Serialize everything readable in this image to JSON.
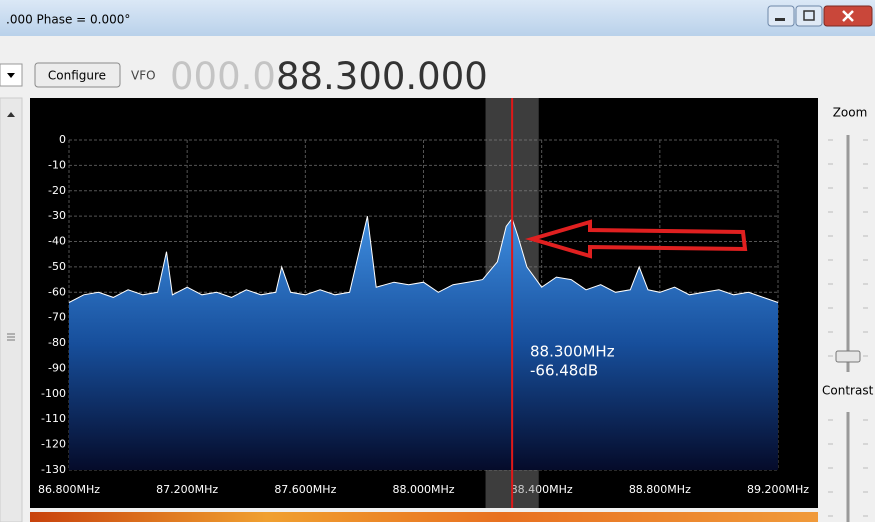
{
  "window": {
    "title": ".000 Phase = 0.000°"
  },
  "toolbar": {
    "configure": "Configure",
    "vfo_label": "VFO",
    "vfo_dim": "000.0",
    "vfo_digits": "88.300.000"
  },
  "side": {
    "zoom": "Zoom",
    "contrast": "Contrast"
  },
  "chart_data": {
    "type": "line",
    "x": [
      86.8,
      86.85,
      86.9,
      86.95,
      87.0,
      87.05,
      87.1,
      87.13,
      87.15,
      87.2,
      87.25,
      87.3,
      87.35,
      87.4,
      87.45,
      87.5,
      87.52,
      87.55,
      87.6,
      87.65,
      87.7,
      87.75,
      87.81,
      87.84,
      87.9,
      87.95,
      88.0,
      88.05,
      88.1,
      88.15,
      88.2,
      88.25,
      88.28,
      88.3,
      88.32,
      88.35,
      88.4,
      88.45,
      88.5,
      88.55,
      88.6,
      88.65,
      88.7,
      88.73,
      88.76,
      88.8,
      88.85,
      88.9,
      88.95,
      89.0,
      89.05,
      89.1,
      89.15,
      89.2
    ],
    "series": [
      {
        "color": "#ffffff",
        "fill": "#2f7ed0",
        "values": [
          -64,
          -61,
          -60,
          -62,
          -59,
          -61,
          -60,
          -44,
          -61,
          -58,
          -61,
          -60,
          -62,
          -59,
          -61,
          -60,
          -50,
          -60,
          -61,
          -59,
          -61,
          -60,
          -30,
          -58,
          -56,
          -57,
          -56,
          -60,
          -57,
          -56,
          -55,
          -48,
          -34,
          -31,
          -38,
          -50,
          -58,
          -54,
          -55,
          -59,
          -57,
          -60,
          -59,
          -50,
          -59,
          -60,
          -58,
          -61,
          -60,
          -59,
          -61,
          -60,
          -62,
          -64
        ]
      }
    ],
    "xlim": [
      86.8,
      89.2
    ],
    "ylim": [
      -130,
      0
    ],
    "xticks": [
      {
        "value": 86.8,
        "label": "86.800MHz"
      },
      {
        "value": 87.2,
        "label": "87.200MHz"
      },
      {
        "value": 87.6,
        "label": "87.600MHz"
      },
      {
        "value": 88.0,
        "label": "88.000MHz"
      },
      {
        "value": 88.4,
        "label": "88.400MHz"
      },
      {
        "value": 88.8,
        "label": "88.800MHz"
      },
      {
        "value": 89.2,
        "label": "89.200MHz"
      }
    ],
    "yticks": [
      0,
      -10,
      -20,
      -30,
      -40,
      -50,
      -60,
      -70,
      -80,
      -90,
      -100,
      -110,
      -120,
      -130
    ],
    "grid": true,
    "vfo_marker": 88.3,
    "filter": [
      88.21,
      88.39
    ],
    "cursor_label": [
      "88.300MHz",
      "-66.48dB"
    ]
  }
}
